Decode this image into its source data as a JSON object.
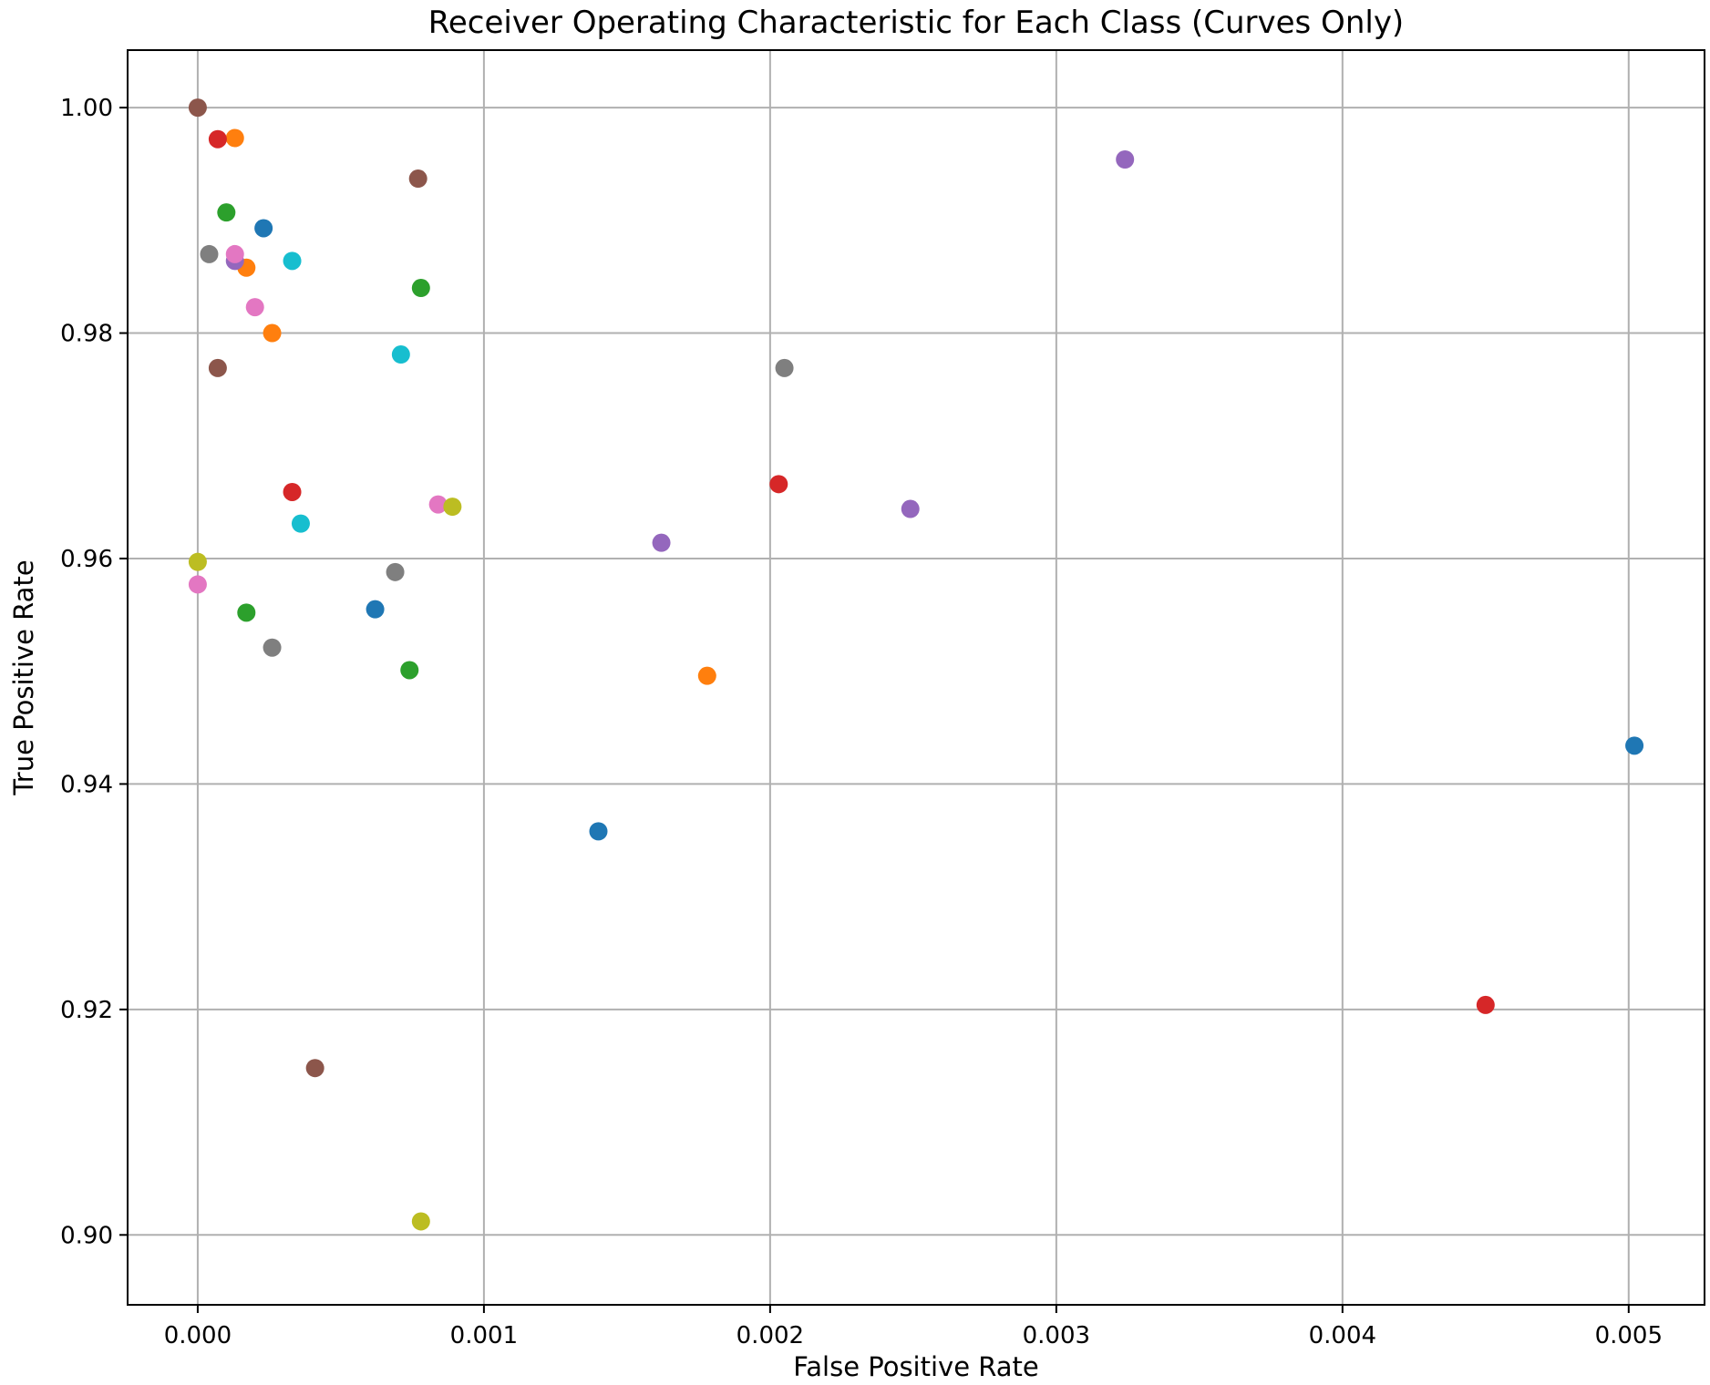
{
  "chart_data": {
    "type": "scatter",
    "title": "Receiver Operating Characteristic for Each Class (Curves Only)",
    "xlabel": "False Positive Rate",
    "ylabel": "True Positive Rate",
    "xlim": [
      -0.000245,
      0.005265
    ],
    "ylim": [
      0.8938,
      1.0051
    ],
    "xticks": [
      0.0,
      0.001,
      0.002,
      0.003,
      0.004,
      0.005
    ],
    "xtick_labels": [
      "0.000",
      "0.001",
      "0.002",
      "0.003",
      "0.004",
      "0.005"
    ],
    "yticks": [
      0.9,
      0.92,
      0.94,
      0.96,
      0.98,
      1.0
    ],
    "ytick_labels": [
      "0.90",
      "0.92",
      "0.94",
      "0.96",
      "0.98",
      "1.00"
    ],
    "grid": true,
    "legend": "none",
    "series": [
      {
        "color": "#1f77b4",
        "points": [
          [
            0.00023,
            0.9893
          ],
          [
            0.00062,
            0.9555
          ],
          [
            0.0014,
            0.9358
          ],
          [
            0.00502,
            0.9434
          ]
        ]
      },
      {
        "color": "#ff7f0e",
        "points": [
          [
            0.00013,
            0.9973
          ],
          [
            0.00017,
            0.9858
          ],
          [
            0.00026,
            0.98
          ],
          [
            0.00178,
            0.9496
          ]
        ]
      },
      {
        "color": "#2ca02c",
        "points": [
          [
            0.0001,
            0.9907
          ],
          [
            0.00017,
            0.9552
          ],
          [
            0.00074,
            0.9501
          ],
          [
            0.00078,
            0.984
          ]
        ]
      },
      {
        "color": "#d62728",
        "points": [
          [
            7e-05,
            0.9972
          ],
          [
            0.00033,
            0.9659
          ],
          [
            0.00203,
            0.9666
          ],
          [
            0.0045,
            0.9204
          ]
        ]
      },
      {
        "color": "#9467bd",
        "points": [
          [
            0.00013,
            0.9864
          ],
          [
            0.00162,
            0.9614
          ],
          [
            0.00249,
            0.9644
          ],
          [
            0.00324,
            0.9954
          ]
        ]
      },
      {
        "color": "#8c564b",
        "points": [
          [
            0.0,
            1.0
          ],
          [
            7e-05,
            0.9769
          ],
          [
            0.00041,
            0.9148
          ],
          [
            0.00077,
            0.9937
          ]
        ]
      },
      {
        "color": "#e377c2",
        "points": [
          [
            0.0,
            0.9577
          ],
          [
            0.00013,
            0.987
          ],
          [
            0.0002,
            0.9823
          ],
          [
            0.00084,
            0.9648
          ]
        ]
      },
      {
        "color": "#7f7f7f",
        "points": [
          [
            4e-05,
            0.987
          ],
          [
            0.00026,
            0.9521
          ],
          [
            0.00069,
            0.9588
          ],
          [
            0.00205,
            0.9769
          ]
        ]
      },
      {
        "color": "#bcbd22",
        "points": [
          [
            0.0,
            0.9597
          ],
          [
            0.00078,
            0.9012
          ],
          [
            0.00089,
            0.9646
          ]
        ]
      },
      {
        "color": "#17becf",
        "points": [
          [
            0.00033,
            0.9864
          ],
          [
            0.00036,
            0.9631
          ],
          [
            0.00071,
            0.9781
          ]
        ]
      }
    ]
  }
}
